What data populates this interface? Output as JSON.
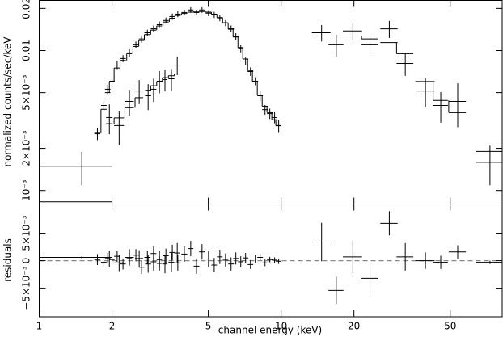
{
  "chart_data": {
    "type": "spectrum",
    "x_label": "channel energy (keV)",
    "xscale": "log",
    "xlim": [
      1,
      82
    ],
    "xticks": [
      1,
      2,
      5,
      10,
      20,
      50
    ],
    "y_label": "normalized counts/sec/keV",
    "yscale": "log",
    "ylim": [
      0.0008,
      0.0228
    ],
    "yticks": [
      {
        "value": 0.001,
        "label": "10⁻³"
      },
      {
        "value": 0.002,
        "label": "2×10⁻³"
      },
      {
        "value": 0.005,
        "label": "5×10⁻³"
      },
      0.01,
      0.02
    ],
    "series": [
      {
        "color": "#000000",
        "x": [
          1.74,
          1.85,
          1.92,
          2.0,
          2.1,
          2.22,
          2.36,
          2.51,
          2.65,
          2.8,
          2.97,
          3.14,
          3.34,
          3.55,
          3.74,
          3.98,
          4.23,
          4.47,
          4.71,
          5.01,
          5.29,
          5.58,
          5.89,
          6.21,
          6.5,
          6.81,
          7.13,
          7.47,
          7.82,
          8.19,
          8.58,
          8.98,
          9.4,
          9.77
        ],
        "x_errors": [
          0.05,
          0.05,
          0.05,
          0.05,
          0.06,
          0.06,
          0.06,
          0.07,
          0.07,
          0.08,
          0.08,
          0.08,
          0.09,
          0.1,
          0.1,
          0.11,
          0.11,
          0.12,
          0.13,
          0.14,
          0.14,
          0.15,
          0.16,
          0.17,
          0.17,
          0.18,
          0.19,
          0.2,
          0.21,
          0.22,
          0.23,
          0.24,
          0.25,
          0.26
        ],
        "values": [
          0.00254,
          0.00405,
          0.00529,
          0.00604,
          0.00787,
          0.00877,
          0.00962,
          0.011,
          0.0121,
          0.0134,
          0.0143,
          0.0153,
          0.0164,
          0.0175,
          0.0182,
          0.0187,
          0.0195,
          0.0187,
          0.0195,
          0.0185,
          0.018,
          0.0171,
          0.0157,
          0.0143,
          0.0126,
          0.0103,
          0.00841,
          0.00708,
          0.00604,
          0.00475,
          0.00378,
          0.00354,
          0.00332,
          0.00291
        ],
        "errors": [
          0.00025,
          0.0003,
          0.0004,
          0.0004,
          0.0005,
          0.0005,
          0.0006,
          0.0006,
          0.0007,
          0.0007,
          0.0008,
          0.0008,
          0.0008,
          0.0009,
          0.0009,
          0.0009,
          0.0009,
          0.0009,
          0.0009,
          0.0009,
          0.0009,
          0.0009,
          0.0008,
          0.0008,
          0.0007,
          0.0006,
          0.0005,
          0.0005,
          0.0004,
          0.0004,
          0.0003,
          0.0003,
          0.0003,
          0.0003
        ],
        "model": [
          0.0026,
          0.0038,
          0.005,
          0.006,
          0.0075,
          0.0085,
          0.0095,
          0.0107,
          0.0118,
          0.013,
          0.014,
          0.015,
          0.016,
          0.017,
          0.0178,
          0.0184,
          0.0188,
          0.019,
          0.019,
          0.0188,
          0.0182,
          0.0172,
          0.0158,
          0.0142,
          0.0125,
          0.0105,
          0.0087,
          0.0072,
          0.006,
          0.0048,
          0.004,
          0.0036,
          0.0032,
          0.0029
        ],
        "residuals": [
          0.0002,
          -0.0003,
          0.0005,
          0.0002,
          0.0008,
          -0.0006,
          0.0004,
          0.001,
          -0.0012,
          0.0006,
          0.0013,
          -0.0005,
          0.0009,
          0.0015,
          -0.0004,
          0.0012,
          0.0022,
          -0.001,
          0.0016,
          0.0003,
          -0.0008,
          0.0007,
          0.0001,
          -0.0006,
          0.0004,
          -0.0002,
          0.0005,
          -0.0007,
          0.0003,
          0.0006,
          -0.0004,
          0.0002,
          0.0001,
          -0.0001
        ],
        "residual_errors": [
          0.001,
          0.0009,
          0.0009,
          0.0009,
          0.001,
          0.001,
          0.0011,
          0.0011,
          0.0012,
          0.0012,
          0.0013,
          0.0013,
          0.0013,
          0.0014,
          0.0014,
          0.0014,
          0.0014,
          0.0014,
          0.0014,
          0.0014,
          0.0013,
          0.0013,
          0.0012,
          0.0012,
          0.0011,
          0.001,
          0.0009,
          0.0008,
          0.0007,
          0.0006,
          0.0006,
          0.0005,
          0.0005,
          0.0005
        ]
      },
      {
        "color": "#000000",
        "x": [
          1.5,
          1.95,
          2.14,
          2.36,
          2.59,
          2.82,
          2.97,
          3.14,
          3.31,
          3.52,
          3.72
        ],
        "x_errors": [
          0.5,
          0.06,
          0.1,
          0.1,
          0.1,
          0.08,
          0.08,
          0.08,
          0.08,
          0.1,
          0.1
        ],
        "values": [
          0.00149,
          0.00332,
          0.00291,
          0.00433,
          0.00514,
          0.00475,
          0.00529,
          0.00604,
          0.0062,
          0.00628,
          0.00787
        ],
        "errors": [
          0.0004,
          0.0008,
          0.0008,
          0.0009,
          0.001,
          0.001,
          0.001,
          0.0011,
          0.0011,
          0.0011,
          0.0012
        ],
        "model": [
          0.00083,
          0.003,
          0.0033,
          0.0039,
          0.0046,
          0.0052,
          0.0056,
          0.006,
          0.0064,
          0.0066,
          0.0068
        ],
        "residuals": [
          0.0006,
          0.0003,
          -0.0004,
          0.0006,
          0.0004,
          -0.0006,
          -0.0002,
          0.0002,
          -0.0006,
          -0.0003,
          0.0014
        ],
        "residual_errors": [
          0.0002,
          0.0015,
          0.0015,
          0.0015,
          0.0015,
          0.0016,
          0.0016,
          0.0016,
          0.0017,
          0.0017,
          0.0018
        ]
      },
      {
        "color": "#000000",
        "x": [
          14.7,
          16.9,
          19.8,
          23.3,
          28.0,
          32.6,
          39.5,
          45.7,
          53.7,
          73.0
        ],
        "x_errors": [
          1.3,
          1.2,
          1.8,
          1.8,
          2.3,
          2.6,
          3.6,
          3.2,
          4.4,
          9.0
        ],
        "values": [
          0.0134,
          0.011,
          0.0138,
          0.011,
          0.0143,
          0.00809,
          0.00514,
          0.00405,
          0.00433,
          0.00159
        ],
        "errors": [
          0.0018,
          0.002,
          0.002,
          0.0018,
          0.002,
          0.0015,
          0.0012,
          0.001,
          0.0015,
          0.0005
        ],
        "model": [
          0.0127,
          0.0127,
          0.0127,
          0.0121,
          0.0114,
          0.0095,
          0.006,
          0.0044,
          0.0036,
          0.0019
        ],
        "residuals": [
          0.0034,
          -0.0054,
          0.0007,
          -0.0032,
          0.0068,
          0.0007,
          0,
          -0.0003,
          0.0016,
          -0.0003
        ],
        "residual_errors": [
          0.0035,
          0.0025,
          0.003,
          0.0025,
          0.0022,
          0.0025,
          0.0015,
          0.0012,
          0.0012,
          0.0003
        ]
      }
    ],
    "residual_panel": {
      "y_label": "residuals",
      "ylim": [
        -0.0102,
        0.0103
      ],
      "yticks": [
        {
          "value": -0.005,
          "label": "−5×10⁻³"
        },
        0,
        {
          "value": 0.005,
          "label": "5×10⁻³"
        }
      ],
      "zero_line_color": "#888888"
    }
  }
}
